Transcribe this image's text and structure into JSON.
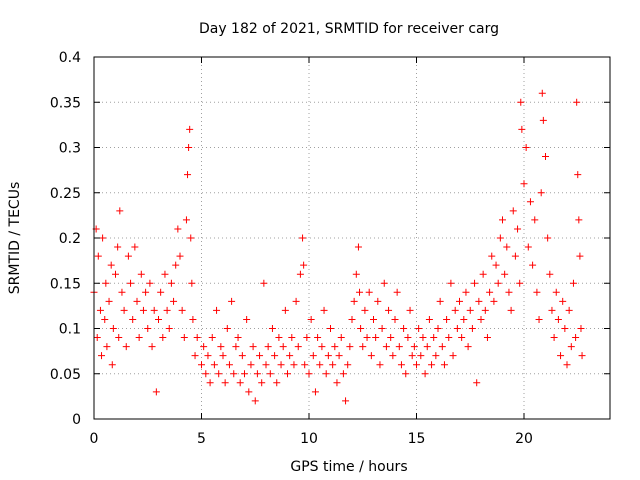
{
  "chart_data": {
    "type": "scatter",
    "title": "Day 182 of 2021, SRMTID for receiver carg",
    "xlabel": "GPS time / hours",
    "ylabel": "SRMTID / TECUs",
    "xlim": [
      0,
      24
    ],
    "ylim": [
      0,
      0.4
    ],
    "x_ticks": [
      0,
      5,
      10,
      15,
      20
    ],
    "x_tick_labels": [
      "0",
      "5",
      "10",
      "15",
      "20"
    ],
    "y_ticks": [
      0,
      0.05,
      0.1,
      0.15,
      0.2,
      0.25,
      0.3,
      0.35,
      0.4
    ],
    "y_tick_labels": [
      "0",
      "0.05",
      "0.1",
      "0.15",
      "0.2",
      "0.25",
      "0.3",
      "0.35",
      "0.4"
    ],
    "grid": true,
    "legend": "none",
    "marker": "+",
    "color": "#ff0000",
    "series": [
      {
        "name": "SRMTID",
        "points": [
          [
            0.0,
            0.14
          ],
          [
            0.1,
            0.21
          ],
          [
            0.15,
            0.09
          ],
          [
            0.2,
            0.18
          ],
          [
            0.3,
            0.12
          ],
          [
            0.35,
            0.07
          ],
          [
            0.4,
            0.2
          ],
          [
            0.5,
            0.11
          ],
          [
            0.55,
            0.15
          ],
          [
            0.6,
            0.08
          ],
          [
            0.7,
            0.13
          ],
          [
            0.8,
            0.17
          ],
          [
            0.85,
            0.06
          ],
          [
            0.9,
            0.1
          ],
          [
            1.0,
            0.16
          ],
          [
            1.1,
            0.19
          ],
          [
            1.15,
            0.09
          ],
          [
            1.2,
            0.23
          ],
          [
            1.3,
            0.14
          ],
          [
            1.4,
            0.12
          ],
          [
            1.5,
            0.08
          ],
          [
            1.6,
            0.18
          ],
          [
            1.7,
            0.15
          ],
          [
            1.8,
            0.11
          ],
          [
            1.9,
            0.19
          ],
          [
            2.0,
            0.13
          ],
          [
            2.1,
            0.09
          ],
          [
            2.2,
            0.16
          ],
          [
            2.3,
            0.12
          ],
          [
            2.4,
            0.14
          ],
          [
            2.5,
            0.1
          ],
          [
            2.6,
            0.15
          ],
          [
            2.7,
            0.08
          ],
          [
            2.8,
            0.12
          ],
          [
            2.9,
            0.03
          ],
          [
            3.0,
            0.11
          ],
          [
            3.1,
            0.14
          ],
          [
            3.2,
            0.09
          ],
          [
            3.3,
            0.16
          ],
          [
            3.4,
            0.12
          ],
          [
            3.5,
            0.1
          ],
          [
            3.6,
            0.15
          ],
          [
            3.7,
            0.13
          ],
          [
            3.8,
            0.17
          ],
          [
            3.9,
            0.21
          ],
          [
            4.0,
            0.18
          ],
          [
            4.1,
            0.12
          ],
          [
            4.2,
            0.09
          ],
          [
            4.3,
            0.22
          ],
          [
            4.35,
            0.27
          ],
          [
            4.4,
            0.3
          ],
          [
            4.45,
            0.32
          ],
          [
            4.5,
            0.2
          ],
          [
            4.55,
            0.15
          ],
          [
            4.6,
            0.11
          ],
          [
            4.7,
            0.07
          ],
          [
            4.8,
            0.09
          ],
          [
            5.0,
            0.06
          ],
          [
            5.1,
            0.08
          ],
          [
            5.2,
            0.05
          ],
          [
            5.3,
            0.07
          ],
          [
            5.4,
            0.04
          ],
          [
            5.5,
            0.09
          ],
          [
            5.6,
            0.06
          ],
          [
            5.7,
            0.12
          ],
          [
            5.8,
            0.05
          ],
          [
            5.9,
            0.08
          ],
          [
            6.0,
            0.07
          ],
          [
            6.1,
            0.04
          ],
          [
            6.2,
            0.1
          ],
          [
            6.3,
            0.06
          ],
          [
            6.4,
            0.13
          ],
          [
            6.5,
            0.05
          ],
          [
            6.6,
            0.08
          ],
          [
            6.7,
            0.09
          ],
          [
            6.8,
            0.04
          ],
          [
            6.9,
            0.07
          ],
          [
            7.0,
            0.05
          ],
          [
            7.1,
            0.11
          ],
          [
            7.2,
            0.03
          ],
          [
            7.3,
            0.06
          ],
          [
            7.4,
            0.08
          ],
          [
            7.5,
            0.02
          ],
          [
            7.6,
            0.05
          ],
          [
            7.7,
            0.07
          ],
          [
            7.8,
            0.04
          ],
          [
            7.9,
            0.15
          ],
          [
            8.0,
            0.06
          ],
          [
            8.1,
            0.08
          ],
          [
            8.2,
            0.05
          ],
          [
            8.3,
            0.1
          ],
          [
            8.4,
            0.07
          ],
          [
            8.5,
            0.04
          ],
          [
            8.6,
            0.09
          ],
          [
            8.7,
            0.06
          ],
          [
            8.8,
            0.08
          ],
          [
            8.9,
            0.12
          ],
          [
            9.0,
            0.05
          ],
          [
            9.1,
            0.07
          ],
          [
            9.2,
            0.09
          ],
          [
            9.3,
            0.06
          ],
          [
            9.4,
            0.13
          ],
          [
            9.5,
            0.08
          ],
          [
            9.6,
            0.16
          ],
          [
            9.7,
            0.2
          ],
          [
            9.75,
            0.17
          ],
          [
            9.8,
            0.06
          ],
          [
            9.9,
            0.09
          ],
          [
            10.0,
            0.05
          ],
          [
            10.1,
            0.11
          ],
          [
            10.2,
            0.07
          ],
          [
            10.3,
            0.03
          ],
          [
            10.4,
            0.09
          ],
          [
            10.5,
            0.06
          ],
          [
            10.6,
            0.08
          ],
          [
            10.7,
            0.12
          ],
          [
            10.8,
            0.05
          ],
          [
            10.9,
            0.07
          ],
          [
            11.0,
            0.1
          ],
          [
            11.1,
            0.06
          ],
          [
            11.2,
            0.08
          ],
          [
            11.3,
            0.04
          ],
          [
            11.4,
            0.07
          ],
          [
            11.5,
            0.09
          ],
          [
            11.6,
            0.05
          ],
          [
            11.7,
            0.02
          ],
          [
            11.8,
            0.06
          ],
          [
            11.9,
            0.08
          ],
          [
            12.0,
            0.11
          ],
          [
            12.1,
            0.13
          ],
          [
            12.2,
            0.16
          ],
          [
            12.3,
            0.19
          ],
          [
            12.35,
            0.14
          ],
          [
            12.4,
            0.1
          ],
          [
            12.5,
            0.08
          ],
          [
            12.6,
            0.12
          ],
          [
            12.7,
            0.09
          ],
          [
            12.8,
            0.14
          ],
          [
            12.9,
            0.07
          ],
          [
            13.0,
            0.11
          ],
          [
            13.1,
            0.09
          ],
          [
            13.2,
            0.13
          ],
          [
            13.3,
            0.06
          ],
          [
            13.4,
            0.1
          ],
          [
            13.5,
            0.15
          ],
          [
            13.6,
            0.08
          ],
          [
            13.7,
            0.12
          ],
          [
            13.8,
            0.09
          ],
          [
            13.9,
            0.07
          ],
          [
            14.0,
            0.11
          ],
          [
            14.1,
            0.14
          ],
          [
            14.2,
            0.08
          ],
          [
            14.3,
            0.06
          ],
          [
            14.4,
            0.1
          ],
          [
            14.5,
            0.05
          ],
          [
            14.6,
            0.09
          ],
          [
            14.7,
            0.12
          ],
          [
            14.8,
            0.07
          ],
          [
            14.9,
            0.08
          ],
          [
            15.0,
            0.06
          ],
          [
            15.1,
            0.1
          ],
          [
            15.2,
            0.07
          ],
          [
            15.3,
            0.09
          ],
          [
            15.4,
            0.05
          ],
          [
            15.5,
            0.08
          ],
          [
            15.6,
            0.11
          ],
          [
            15.7,
            0.06
          ],
          [
            15.8,
            0.09
          ],
          [
            15.9,
            0.07
          ],
          [
            16.0,
            0.1
          ],
          [
            16.1,
            0.13
          ],
          [
            16.2,
            0.08
          ],
          [
            16.3,
            0.06
          ],
          [
            16.4,
            0.11
          ],
          [
            16.5,
            0.09
          ],
          [
            16.6,
            0.15
          ],
          [
            16.7,
            0.07
          ],
          [
            16.8,
            0.12
          ],
          [
            16.9,
            0.1
          ],
          [
            17.0,
            0.13
          ],
          [
            17.1,
            0.09
          ],
          [
            17.2,
            0.11
          ],
          [
            17.3,
            0.14
          ],
          [
            17.4,
            0.08
          ],
          [
            17.5,
            0.12
          ],
          [
            17.6,
            0.1
          ],
          [
            17.7,
            0.15
          ],
          [
            17.8,
            0.04
          ],
          [
            17.9,
            0.13
          ],
          [
            18.0,
            0.11
          ],
          [
            18.1,
            0.16
          ],
          [
            18.2,
            0.12
          ],
          [
            18.3,
            0.09
          ],
          [
            18.4,
            0.14
          ],
          [
            18.5,
            0.18
          ],
          [
            18.6,
            0.13
          ],
          [
            18.7,
            0.17
          ],
          [
            18.8,
            0.15
          ],
          [
            18.9,
            0.2
          ],
          [
            19.0,
            0.22
          ],
          [
            19.1,
            0.16
          ],
          [
            19.2,
            0.19
          ],
          [
            19.3,
            0.14
          ],
          [
            19.4,
            0.12
          ],
          [
            19.5,
            0.23
          ],
          [
            19.6,
            0.18
          ],
          [
            19.7,
            0.21
          ],
          [
            19.8,
            0.15
          ],
          [
            19.85,
            0.35
          ],
          [
            19.9,
            0.32
          ],
          [
            20.0,
            0.26
          ],
          [
            20.1,
            0.3
          ],
          [
            20.2,
            0.19
          ],
          [
            20.3,
            0.24
          ],
          [
            20.4,
            0.17
          ],
          [
            20.5,
            0.22
          ],
          [
            20.6,
            0.14
          ],
          [
            20.7,
            0.11
          ],
          [
            20.8,
            0.25
          ],
          [
            20.85,
            0.36
          ],
          [
            20.9,
            0.33
          ],
          [
            21.0,
            0.29
          ],
          [
            21.1,
            0.2
          ],
          [
            21.2,
            0.16
          ],
          [
            21.3,
            0.12
          ],
          [
            21.4,
            0.09
          ],
          [
            21.5,
            0.14
          ],
          [
            21.6,
            0.11
          ],
          [
            21.7,
            0.07
          ],
          [
            21.8,
            0.13
          ],
          [
            21.9,
            0.1
          ],
          [
            22.0,
            0.06
          ],
          [
            22.1,
            0.12
          ],
          [
            22.2,
            0.08
          ],
          [
            22.3,
            0.15
          ],
          [
            22.4,
            0.09
          ],
          [
            22.45,
            0.35
          ],
          [
            22.5,
            0.27
          ],
          [
            22.55,
            0.22
          ],
          [
            22.6,
            0.18
          ],
          [
            22.65,
            0.1
          ],
          [
            22.7,
            0.07
          ]
        ]
      }
    ]
  }
}
